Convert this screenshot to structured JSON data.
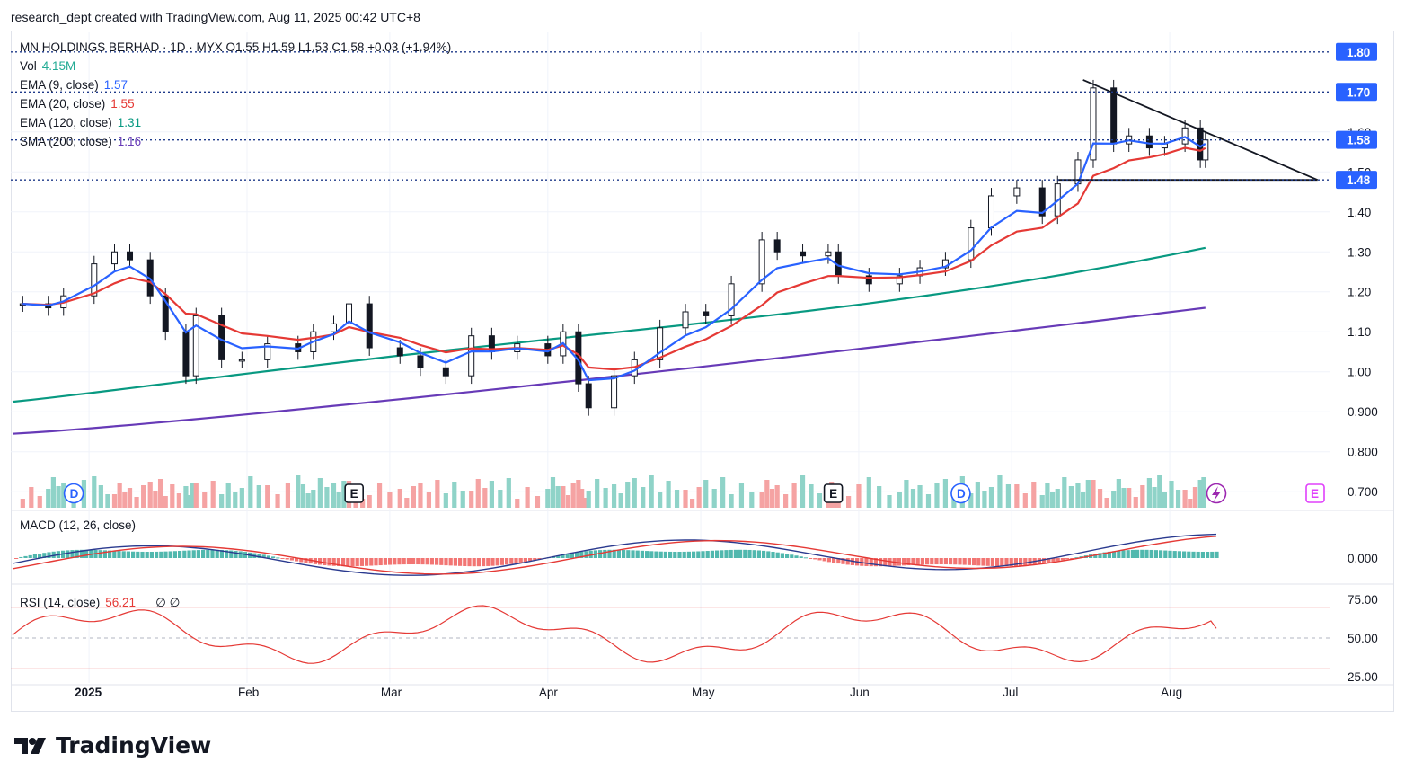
{
  "header": {
    "text": "research_dept created with TradingView.com, Aug 11, 2025 00:42 UTC+8"
  },
  "legend": {
    "symbol_line": "MN HOLDINGS BERHAD · 1D · MYX  O1.55  H1.59  L1.53  C1.58  +0.03 (+1.94%)",
    "vol_label": "Vol",
    "vol_value": "4.15M",
    "ema9_label": "EMA (9, close)",
    "ema9_value": "1.57",
    "ema20_label": "EMA (20, close)",
    "ema20_value": "1.55",
    "ema120_label": "EMA (120, close)",
    "ema120_value": "1.31",
    "sma200_label": "SMA (200, close)",
    "sma200_value": "1.16",
    "macd_label": "MACD (12, 26, close)",
    "rsi_label": "RSI (14, close)",
    "rsi_value": "56.21",
    "rsi_extra": "∅  ∅"
  },
  "colors": {
    "up_volume": "#8fd3c8",
    "down_volume": "#f5a3a3",
    "ema9": "#2962ff",
    "ema20": "#e53935",
    "ema120": "#089981",
    "sma200": "#673ab7",
    "macd": "#2a3a8f",
    "signal": "#e53935",
    "rsi": "#e53935",
    "price_tag": "#2962ff"
  },
  "events": {
    "dividend": "D",
    "earnings": "E"
  },
  "brand": {
    "name": "TradingView"
  },
  "chart_data": {
    "type": "candlestick",
    "title": "MN HOLDINGS BERHAD · 1D · MYX",
    "ohlc_last": {
      "open": 1.55,
      "high": 1.59,
      "low": 1.53,
      "close": 1.58,
      "change": "+0.03 (+1.94%)"
    },
    "price_axis_ticks": [
      "1.60",
      "1.50",
      "1.40",
      "1.30",
      "1.20",
      "1.10",
      "1.00",
      "0.900",
      "0.800",
      "0.700"
    ],
    "macd_axis_ticks": [
      "0.000"
    ],
    "rsi_axis_ticks": [
      "75.00",
      "50.00",
      "25.00"
    ],
    "x_ticks": [
      "2025",
      "Feb",
      "Mar",
      "Apr",
      "May",
      "Jun",
      "Jul",
      "Aug"
    ],
    "price_levels": [
      {
        "value": "1.80",
        "style": "dotted"
      },
      {
        "value": "1.70",
        "style": "dotted"
      },
      {
        "value": "1.58",
        "style": "dotted"
      },
      {
        "value": "1.48",
        "style": "dotted"
      }
    ],
    "ylim": [
      0.66,
      1.84
    ],
    "series_price": [
      [
        "2024-12-19",
        1.17
      ],
      [
        "2024-12-24",
        1.16
      ],
      [
        "2024-12-27",
        1.19
      ],
      [
        "2025-01-02",
        1.27
      ],
      [
        "2025-01-06",
        1.3
      ],
      [
        "2025-01-09",
        1.28
      ],
      [
        "2025-01-13",
        1.19
      ],
      [
        "2025-01-16",
        1.1
      ],
      [
        "2025-01-20",
        0.99
      ],
      [
        "2025-01-22",
        1.14
      ],
      [
        "2025-01-27",
        1.03
      ],
      [
        "2025-01-31",
        1.03
      ],
      [
        "2025-02-05",
        1.07
      ],
      [
        "2025-02-11",
        1.05
      ],
      [
        "2025-02-14",
        1.1
      ],
      [
        "2025-02-18",
        1.12
      ],
      [
        "2025-02-21",
        1.17
      ],
      [
        "2025-02-25",
        1.06
      ],
      [
        "2025-03-03",
        1.04
      ],
      [
        "2025-03-07",
        1.01
      ],
      [
        "2025-03-12",
        0.99
      ],
      [
        "2025-03-17",
        1.09
      ],
      [
        "2025-03-21",
        1.05
      ],
      [
        "2025-03-26",
        1.07
      ],
      [
        "2025-04-01",
        1.04
      ],
      [
        "2025-04-04",
        1.1
      ],
      [
        "2025-04-07",
        0.97
      ],
      [
        "2025-04-09",
        0.91
      ],
      [
        "2025-04-14",
        0.99
      ],
      [
        "2025-04-18",
        1.03
      ],
      [
        "2025-04-23",
        1.11
      ],
      [
        "2025-04-28",
        1.15
      ],
      [
        "2025-05-02",
        1.14
      ],
      [
        "2025-05-07",
        1.22
      ],
      [
        "2025-05-13",
        1.33
      ],
      [
        "2025-05-16",
        1.3
      ],
      [
        "2025-05-21",
        1.29
      ],
      [
        "2025-05-26",
        1.3
      ],
      [
        "2025-05-28",
        1.24
      ],
      [
        "2025-06-03",
        1.22
      ],
      [
        "2025-06-09",
        1.24
      ],
      [
        "2025-06-13",
        1.26
      ],
      [
        "2025-06-18",
        1.28
      ],
      [
        "2025-06-23",
        1.36
      ],
      [
        "2025-06-27",
        1.44
      ],
      [
        "2025-07-02",
        1.46
      ],
      [
        "2025-07-07",
        1.39
      ],
      [
        "2025-07-10",
        1.47
      ],
      [
        "2025-07-14",
        1.53
      ],
      [
        "2025-07-17",
        1.71
      ],
      [
        "2025-07-21",
        1.57
      ],
      [
        "2025-07-24",
        1.59
      ],
      [
        "2025-07-28",
        1.56
      ],
      [
        "2025-07-31",
        1.57
      ],
      [
        "2025-08-04",
        1.61
      ],
      [
        "2025-08-07",
        1.53
      ],
      [
        "2025-08-08",
        1.58
      ]
    ],
    "series_ema120_end": 1.31,
    "series_sma200_end": 1.16,
    "triangle": {
      "resistance": [
        [
          "2025-07-15",
          1.73
        ],
        [
          "2025-08-30",
          1.48
        ]
      ],
      "support": [
        [
          "2025-07-10",
          1.48
        ],
        [
          "2025-08-30",
          1.48
        ]
      ]
    },
    "rsi_last": 56.21
  }
}
